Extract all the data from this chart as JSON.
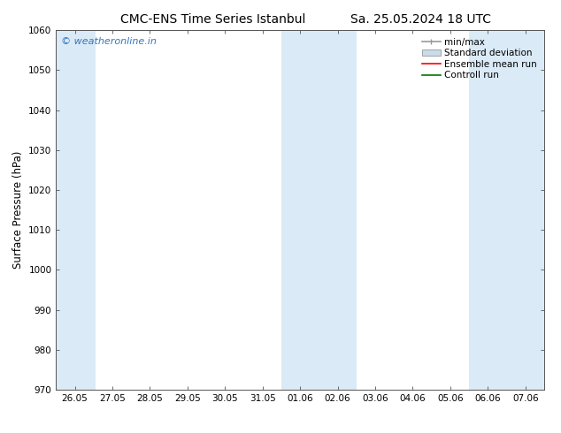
{
  "title_left": "CMC-ENS Time Series Istanbul",
  "title_right": "Sa. 25.05.2024 18 UTC",
  "ylabel": "Surface Pressure (hPa)",
  "ylim": [
    970,
    1060
  ],
  "yticks": [
    970,
    980,
    990,
    1000,
    1010,
    1020,
    1030,
    1040,
    1050,
    1060
  ],
  "x_labels": [
    "26.05",
    "27.05",
    "28.05",
    "29.05",
    "30.05",
    "31.05",
    "01.06",
    "02.06",
    "03.06",
    "04.06",
    "05.06",
    "06.06",
    "07.06"
  ],
  "band_color": "#daeaf7",
  "watermark": "© weatheronline.in",
  "watermark_color": "#3377bb",
  "bg_color": "#ffffff",
  "plot_bg_color": "#ffffff",
  "font_color": "#000000",
  "title_fontsize": 10,
  "label_fontsize": 8.5,
  "tick_fontsize": 7.5,
  "legend_fontsize": 7.5,
  "minmax_color": "#999999",
  "std_color": "#c8dcea",
  "ensemble_color": "#ff0000",
  "control_color": "#007700"
}
